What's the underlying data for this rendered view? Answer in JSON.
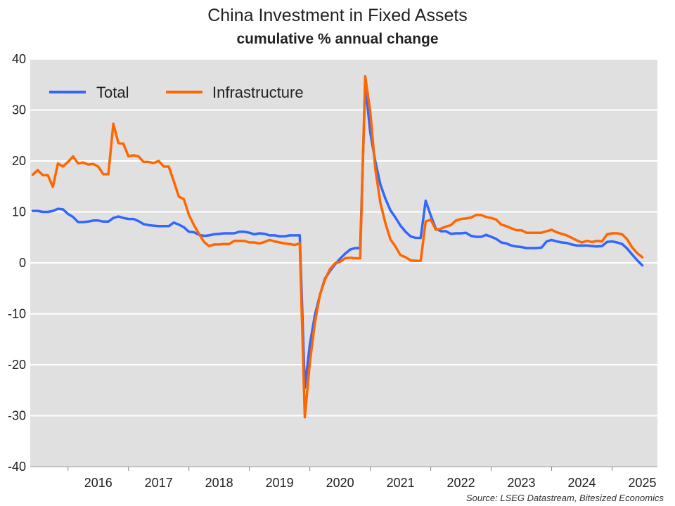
{
  "chart_data": {
    "type": "line",
    "title": "China Investment in Fixed Assets",
    "subtitle": "cumulative % annual change",
    "source": "Source: LSEG Datastream, Bitesized Economics",
    "ylim": [
      -40,
      40
    ],
    "yticks": [
      40,
      30,
      20,
      10,
      0,
      -10,
      -20,
      -30,
      -40
    ],
    "xticks": [
      "2016",
      "2017",
      "2018",
      "2019",
      "2020",
      "2021",
      "2022",
      "2023",
      "2024",
      "2025"
    ],
    "grid": true,
    "legend_position": "top-left",
    "series": [
      {
        "name": "Total",
        "color": "#3366ff",
        "points": [
          [
            "2015-06",
            10.2
          ],
          [
            "2015-07",
            10.2
          ],
          [
            "2015-08",
            10.0
          ],
          [
            "2015-09",
            10.0
          ],
          [
            "2015-10",
            10.2
          ],
          [
            "2015-11",
            10.6
          ],
          [
            "2015-12",
            10.5
          ],
          [
            "2016-01",
            9.6
          ],
          [
            "2016-02",
            9.0
          ],
          [
            "2016-03",
            8.0
          ],
          [
            "2016-04",
            8.0
          ],
          [
            "2016-05",
            8.1
          ],
          [
            "2016-06",
            8.3
          ],
          [
            "2016-07",
            8.3
          ],
          [
            "2016-08",
            8.1
          ],
          [
            "2016-09",
            8.1
          ],
          [
            "2016-10",
            8.8
          ],
          [
            "2016-11",
            9.1
          ],
          [
            "2016-12",
            8.8
          ],
          [
            "2017-01",
            8.6
          ],
          [
            "2017-02",
            8.6
          ],
          [
            "2017-03",
            8.2
          ],
          [
            "2017-04",
            7.6
          ],
          [
            "2017-05",
            7.4
          ],
          [
            "2017-06",
            7.3
          ],
          [
            "2017-07",
            7.2
          ],
          [
            "2017-08",
            7.2
          ],
          [
            "2017-09",
            7.2
          ],
          [
            "2017-10",
            7.9
          ],
          [
            "2017-11",
            7.5
          ],
          [
            "2017-12",
            7.0
          ],
          [
            "2018-01",
            6.1
          ],
          [
            "2018-02",
            6.0
          ],
          [
            "2018-03",
            5.5
          ],
          [
            "2018-04",
            5.3
          ],
          [
            "2018-05",
            5.4
          ],
          [
            "2018-06",
            5.6
          ],
          [
            "2018-07",
            5.7
          ],
          [
            "2018-08",
            5.8
          ],
          [
            "2018-09",
            5.8
          ],
          [
            "2018-10",
            5.8
          ],
          [
            "2018-11",
            6.1
          ],
          [
            "2018-12",
            6.1
          ],
          [
            "2019-01",
            5.9
          ],
          [
            "2019-02",
            5.6
          ],
          [
            "2019-03",
            5.8
          ],
          [
            "2019-04",
            5.7
          ],
          [
            "2019-05",
            5.4
          ],
          [
            "2019-06",
            5.4
          ],
          [
            "2019-07",
            5.2
          ],
          [
            "2019-08",
            5.2
          ],
          [
            "2019-09",
            5.4
          ],
          [
            "2019-10",
            5.4
          ],
          [
            "2019-11",
            5.4
          ],
          [
            "2019-12",
            -24.5
          ],
          [
            "2020-01",
            -16.1
          ],
          [
            "2020-02",
            -10.3
          ],
          [
            "2020-03",
            -6.3
          ],
          [
            "2020-04",
            -3.1
          ],
          [
            "2020-05",
            -1.6
          ],
          [
            "2020-06",
            -0.3
          ],
          [
            "2020-07",
            0.8
          ],
          [
            "2020-08",
            1.8
          ],
          [
            "2020-09",
            2.6
          ],
          [
            "2020-10",
            2.9
          ],
          [
            "2020-11",
            2.9
          ],
          [
            "2020-12",
            35.0
          ],
          [
            "2021-01",
            25.6
          ],
          [
            "2021-02",
            19.9
          ],
          [
            "2021-03",
            15.4
          ],
          [
            "2021-04",
            12.6
          ],
          [
            "2021-05",
            10.3
          ],
          [
            "2021-06",
            8.9
          ],
          [
            "2021-07",
            7.3
          ],
          [
            "2021-08",
            6.1
          ],
          [
            "2021-09",
            5.2
          ],
          [
            "2021-10",
            4.9
          ],
          [
            "2021-11",
            4.9
          ],
          [
            "2021-12",
            12.2
          ],
          [
            "2022-01",
            9.3
          ],
          [
            "2022-02",
            6.7
          ],
          [
            "2022-03",
            6.2
          ],
          [
            "2022-04",
            6.2
          ],
          [
            "2022-05",
            5.7
          ],
          [
            "2022-06",
            5.8
          ],
          [
            "2022-07",
            5.8
          ],
          [
            "2022-08",
            5.9
          ],
          [
            "2022-09",
            5.3
          ],
          [
            "2022-10",
            5.1
          ],
          [
            "2022-11",
            5.1
          ],
          [
            "2022-12",
            5.5
          ],
          [
            "2023-01",
            5.1
          ],
          [
            "2023-02",
            4.7
          ],
          [
            "2023-03",
            4.0
          ],
          [
            "2023-04",
            3.8
          ],
          [
            "2023-05",
            3.4
          ],
          [
            "2023-06",
            3.2
          ],
          [
            "2023-07",
            3.1
          ],
          [
            "2023-08",
            2.9
          ],
          [
            "2023-09",
            2.9
          ],
          [
            "2023-10",
            2.9
          ],
          [
            "2023-11",
            3.0
          ],
          [
            "2023-12",
            4.2
          ],
          [
            "2024-01",
            4.5
          ],
          [
            "2024-02",
            4.2
          ],
          [
            "2024-03",
            4.0
          ],
          [
            "2024-04",
            3.9
          ],
          [
            "2024-05",
            3.6
          ],
          [
            "2024-06",
            3.4
          ],
          [
            "2024-07",
            3.4
          ],
          [
            "2024-08",
            3.4
          ],
          [
            "2024-09",
            3.3
          ],
          [
            "2024-10",
            3.2
          ],
          [
            "2024-11",
            3.3
          ],
          [
            "2024-12",
            4.1
          ],
          [
            "2025-01",
            4.2
          ],
          [
            "2025-02",
            4.0
          ],
          [
            "2025-03",
            3.7
          ],
          [
            "2025-04",
            2.8
          ],
          [
            "2025-05",
            1.6
          ],
          [
            "2025-06",
            0.5
          ],
          [
            "2025-07",
            -0.5
          ]
        ]
      },
      {
        "name": "Infrastructure",
        "color": "#ff6600",
        "points": [
          [
            "2015-06",
            17.3
          ],
          [
            "2015-07",
            18.2
          ],
          [
            "2015-08",
            17.2
          ],
          [
            "2015-09",
            17.2
          ],
          [
            "2015-10",
            14.9
          ],
          [
            "2015-11",
            19.5
          ],
          [
            "2015-12",
            18.9
          ],
          [
            "2016-01",
            19.8
          ],
          [
            "2016-02",
            20.9
          ],
          [
            "2016-03",
            19.5
          ],
          [
            "2016-04",
            19.7
          ],
          [
            "2016-05",
            19.3
          ],
          [
            "2016-06",
            19.4
          ],
          [
            "2016-07",
            18.9
          ],
          [
            "2016-08",
            17.4
          ],
          [
            "2016-09",
            17.4
          ],
          [
            "2016-10",
            27.3
          ],
          [
            "2016-11",
            23.5
          ],
          [
            "2016-12",
            23.4
          ],
          [
            "2017-01",
            20.9
          ],
          [
            "2017-02",
            21.1
          ],
          [
            "2017-03",
            20.9
          ],
          [
            "2017-04",
            19.8
          ],
          [
            "2017-05",
            19.8
          ],
          [
            "2017-06",
            19.6
          ],
          [
            "2017-07",
            20.0
          ],
          [
            "2017-08",
            18.9
          ],
          [
            "2017-09",
            18.9
          ],
          [
            "2017-10",
            16.0
          ],
          [
            "2017-11",
            13.0
          ],
          [
            "2017-12",
            12.5
          ],
          [
            "2018-01",
            9.4
          ],
          [
            "2018-02",
            7.4
          ],
          [
            "2018-03",
            5.7
          ],
          [
            "2018-04",
            4.1
          ],
          [
            "2018-05",
            3.3
          ],
          [
            "2018-06",
            3.6
          ],
          [
            "2018-07",
            3.6
          ],
          [
            "2018-08",
            3.7
          ],
          [
            "2018-09",
            3.7
          ],
          [
            "2018-10",
            4.3
          ],
          [
            "2018-11",
            4.3
          ],
          [
            "2018-12",
            4.3
          ],
          [
            "2019-01",
            4.0
          ],
          [
            "2019-02",
            4.0
          ],
          [
            "2019-03",
            3.8
          ],
          [
            "2019-04",
            4.1
          ],
          [
            "2019-05",
            4.5
          ],
          [
            "2019-06",
            4.2
          ],
          [
            "2019-07",
            4.0
          ],
          [
            "2019-08",
            3.8
          ],
          [
            "2019-09",
            3.7
          ],
          [
            "2019-10",
            3.5
          ],
          [
            "2019-11",
            3.8
          ],
          [
            "2019-12",
            -30.3
          ],
          [
            "2020-01",
            -19.7
          ],
          [
            "2020-02",
            -11.8
          ],
          [
            "2020-03",
            -6.3
          ],
          [
            "2020-04",
            -3.3
          ],
          [
            "2020-05",
            -1.2
          ],
          [
            "2020-06",
            -0.1
          ],
          [
            "2020-07",
            0.2
          ],
          [
            "2020-08",
            0.9
          ],
          [
            "2020-09",
            1.0
          ],
          [
            "2020-10",
            0.9
          ],
          [
            "2020-11",
            0.9
          ],
          [
            "2020-12",
            36.6
          ],
          [
            "2021-01",
            29.7
          ],
          [
            "2021-02",
            18.4
          ],
          [
            "2021-03",
            11.8
          ],
          [
            "2021-04",
            7.8
          ],
          [
            "2021-05",
            4.6
          ],
          [
            "2021-06",
            3.2
          ],
          [
            "2021-07",
            1.5
          ],
          [
            "2021-08",
            1.1
          ],
          [
            "2021-09",
            0.5
          ],
          [
            "2021-10",
            0.4
          ],
          [
            "2021-11",
            0.4
          ],
          [
            "2021-12",
            8.1
          ],
          [
            "2022-01",
            8.5
          ],
          [
            "2022-02",
            6.5
          ],
          [
            "2022-03",
            6.7
          ],
          [
            "2022-04",
            7.1
          ],
          [
            "2022-05",
            7.4
          ],
          [
            "2022-06",
            8.3
          ],
          [
            "2022-07",
            8.6
          ],
          [
            "2022-08",
            8.7
          ],
          [
            "2022-09",
            8.9
          ],
          [
            "2022-10",
            9.4
          ],
          [
            "2022-11",
            9.4
          ],
          [
            "2022-12",
            9.0
          ],
          [
            "2023-01",
            8.8
          ],
          [
            "2023-02",
            8.5
          ],
          [
            "2023-03",
            7.5
          ],
          [
            "2023-04",
            7.2
          ],
          [
            "2023-05",
            6.8
          ],
          [
            "2023-06",
            6.4
          ],
          [
            "2023-07",
            6.4
          ],
          [
            "2023-08",
            5.9
          ],
          [
            "2023-09",
            5.9
          ],
          [
            "2023-10",
            5.9
          ],
          [
            "2023-11",
            5.9
          ],
          [
            "2023-12",
            6.2
          ],
          [
            "2024-01",
            6.5
          ],
          [
            "2024-02",
            6.0
          ],
          [
            "2024-03",
            5.7
          ],
          [
            "2024-04",
            5.4
          ],
          [
            "2024-05",
            4.9
          ],
          [
            "2024-06",
            4.4
          ],
          [
            "2024-07",
            4.0
          ],
          [
            "2024-08",
            4.3
          ],
          [
            "2024-09",
            4.1
          ],
          [
            "2024-10",
            4.3
          ],
          [
            "2024-11",
            4.2
          ],
          [
            "2024-12",
            5.6
          ],
          [
            "2025-01",
            5.8
          ],
          [
            "2025-02",
            5.8
          ],
          [
            "2025-03",
            5.6
          ],
          [
            "2025-04",
            4.6
          ],
          [
            "2025-05",
            3.0
          ],
          [
            "2025-06",
            1.9
          ],
          [
            "2025-07",
            1.1
          ]
        ]
      }
    ]
  }
}
